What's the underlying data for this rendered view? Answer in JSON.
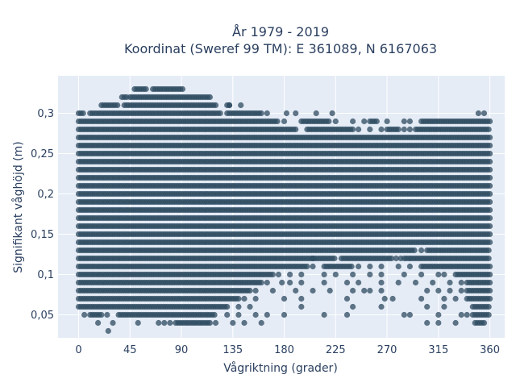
{
  "chart_data": {
    "type": "scatter",
    "title_lines": [
      "År 1979 - 2019",
      "Koordinat (Sweref 99 TM): E 361089, N 6167063"
    ],
    "xlabel": "Vågriktning (grader)",
    "ylabel": "Signifikant våghöjd (m)",
    "xlim": [
      -18,
      373
    ],
    "ylim": [
      0.0215,
      0.3465
    ],
    "xticks": [
      0,
      45,
      90,
      135,
      180,
      225,
      270,
      315,
      360
    ],
    "yticks": [
      0.05,
      0.1,
      0.15,
      0.2,
      0.25,
      0.3
    ],
    "ytick_labels": [
      "0,05",
      "0,1",
      "0,15",
      "0,2",
      "0,25",
      "0,3"
    ],
    "grid": true,
    "background": "#e5ecf6",
    "marker_color": "#2e4b60",
    "marker_opacity": 0.75,
    "y_levels": [
      0.03,
      0.04,
      0.05,
      0.06,
      0.07,
      0.08,
      0.09,
      0.1,
      0.11,
      0.12,
      0.13,
      0.14,
      0.15,
      0.16,
      0.17,
      0.18,
      0.19,
      0.2,
      0.21,
      0.22,
      0.23,
      0.24,
      0.25,
      0.26,
      0.27,
      0.28,
      0.29,
      0.3,
      0.31,
      0.32,
      0.33
    ],
    "dense_ranges": [
      {
        "y": 0.33,
        "x": [
          [
            49,
            60
          ],
          [
            65,
            92
          ]
        ]
      },
      {
        "y": 0.32,
        "x": [
          [
            38,
            42
          ],
          [
            45,
            115
          ]
        ]
      },
      {
        "y": 0.31,
        "x": [
          [
            20,
            35
          ],
          [
            40,
            120
          ],
          [
            130,
            133
          ]
        ]
      },
      {
        "y": 0.3,
        "x": [
          [
            0,
            5
          ],
          [
            10,
            125
          ],
          [
            130,
            160
          ]
        ]
      },
      {
        "y": 0.29,
        "x": [
          [
            0,
            175
          ],
          [
            195,
            220
          ],
          [
            255,
            262
          ],
          [
            300,
            360
          ]
        ]
      },
      {
        "y": 0.28,
        "x": [
          [
            0,
            190
          ],
          [
            200,
            240
          ],
          [
            270,
            280
          ],
          [
            295,
            360
          ]
        ]
      },
      {
        "y": 0.27,
        "x": [
          [
            0,
            360
          ]
        ]
      },
      {
        "y": 0.26,
        "x": [
          [
            0,
            360
          ]
        ]
      },
      {
        "y": 0.25,
        "x": [
          [
            0,
            360
          ]
        ]
      },
      {
        "y": 0.24,
        "x": [
          [
            0,
            360
          ]
        ]
      },
      {
        "y": 0.23,
        "x": [
          [
            0,
            360
          ]
        ]
      },
      {
        "y": 0.22,
        "x": [
          [
            0,
            360
          ]
        ]
      },
      {
        "y": 0.21,
        "x": [
          [
            0,
            360
          ]
        ]
      },
      {
        "y": 0.2,
        "x": [
          [
            0,
            360
          ]
        ]
      },
      {
        "y": 0.19,
        "x": [
          [
            0,
            360
          ]
        ]
      },
      {
        "y": 0.18,
        "x": [
          [
            0,
            360
          ]
        ]
      },
      {
        "y": 0.17,
        "x": [
          [
            0,
            360
          ]
        ]
      },
      {
        "y": 0.16,
        "x": [
          [
            0,
            360
          ]
        ]
      },
      {
        "y": 0.15,
        "x": [
          [
            0,
            360
          ]
        ]
      },
      {
        "y": 0.14,
        "x": [
          [
            0,
            360
          ]
        ]
      },
      {
        "y": 0.13,
        "x": [
          [
            0,
            295
          ],
          [
            305,
            360
          ]
        ]
      },
      {
        "y": 0.12,
        "x": [
          [
            0,
            225
          ],
          [
            230,
            275
          ],
          [
            285,
            360
          ]
        ]
      },
      {
        "y": 0.11,
        "x": [
          [
            0,
            200
          ],
          [
            215,
            240
          ],
          [
            300,
            360
          ]
        ]
      },
      {
        "y": 0.1,
        "x": [
          [
            0,
            170
          ],
          [
            330,
            360
          ]
        ]
      },
      {
        "y": 0.09,
        "x": [
          [
            0,
            160
          ],
          [
            340,
            360
          ]
        ]
      },
      {
        "y": 0.08,
        "x": [
          [
            0,
            150
          ],
          [
            340,
            360
          ]
        ]
      },
      {
        "y": 0.07,
        "x": [
          [
            0,
            140
          ],
          [
            340,
            360
          ]
        ]
      },
      {
        "y": 0.06,
        "x": [
          [
            0,
            130
          ],
          [
            345,
            360
          ]
        ]
      },
      {
        "y": 0.05,
        "x": [
          [
            10,
            20
          ],
          [
            35,
            120
          ],
          [
            345,
            360
          ]
        ]
      },
      {
        "y": 0.04,
        "x": [
          [
            85,
            115
          ],
          [
            347,
            355
          ]
        ]
      }
    ],
    "sparse_points": [
      [
        132,
        0.31
      ],
      [
        142,
        0.31
      ],
      [
        165,
        0.3
      ],
      [
        182,
        0.3
      ],
      [
        190,
        0.3
      ],
      [
        208,
        0.3
      ],
      [
        222,
        0.3
      ],
      [
        350,
        0.3
      ],
      [
        355,
        0.3
      ],
      [
        180,
        0.29
      ],
      [
        225,
        0.29
      ],
      [
        240,
        0.29
      ],
      [
        250,
        0.29
      ],
      [
        270,
        0.29
      ],
      [
        285,
        0.29
      ],
      [
        290,
        0.29
      ],
      [
        245,
        0.28
      ],
      [
        255,
        0.28
      ],
      [
        265,
        0.28
      ],
      [
        285,
        0.28
      ],
      [
        290,
        0.28
      ],
      [
        300,
        0.13
      ],
      [
        205,
        0.12
      ],
      [
        278,
        0.12
      ],
      [
        282,
        0.12
      ],
      [
        205,
        0.11
      ],
      [
        245,
        0.11
      ],
      [
        255,
        0.11
      ],
      [
        265,
        0.11
      ],
      [
        280,
        0.11
      ],
      [
        290,
        0.11
      ],
      [
        175,
        0.1
      ],
      [
        185,
        0.1
      ],
      [
        195,
        0.1
      ],
      [
        215,
        0.1
      ],
      [
        225,
        0.1
      ],
      [
        240,
        0.1
      ],
      [
        255,
        0.1
      ],
      [
        265,
        0.1
      ],
      [
        285,
        0.1
      ],
      [
        300,
        0.1
      ],
      [
        315,
        0.1
      ],
      [
        320,
        0.1
      ],
      [
        165,
        0.09
      ],
      [
        178,
        0.09
      ],
      [
        185,
        0.09
      ],
      [
        195,
        0.09
      ],
      [
        215,
        0.09
      ],
      [
        235,
        0.09
      ],
      [
        245,
        0.09
      ],
      [
        265,
        0.09
      ],
      [
        280,
        0.09
      ],
      [
        295,
        0.09
      ],
      [
        310,
        0.09
      ],
      [
        325,
        0.09
      ],
      [
        335,
        0.09
      ],
      [
        155,
        0.08
      ],
      [
        170,
        0.08
      ],
      [
        190,
        0.08
      ],
      [
        205,
        0.08
      ],
      [
        220,
        0.08
      ],
      [
        240,
        0.08
      ],
      [
        250,
        0.08
      ],
      [
        255,
        0.08
      ],
      [
        265,
        0.08
      ],
      [
        305,
        0.08
      ],
      [
        315,
        0.08
      ],
      [
        325,
        0.08
      ],
      [
        335,
        0.08
      ],
      [
        145,
        0.07
      ],
      [
        155,
        0.07
      ],
      [
        180,
        0.07
      ],
      [
        195,
        0.07
      ],
      [
        235,
        0.07
      ],
      [
        268,
        0.07
      ],
      [
        275,
        0.07
      ],
      [
        300,
        0.07
      ],
      [
        320,
        0.07
      ],
      [
        330,
        0.07
      ],
      [
        140,
        0.06
      ],
      [
        150,
        0.06
      ],
      [
        195,
        0.06
      ],
      [
        240,
        0.06
      ],
      [
        265,
        0.06
      ],
      [
        305,
        0.06
      ],
      [
        320,
        0.06
      ],
      [
        5,
        0.05
      ],
      [
        25,
        0.05
      ],
      [
        130,
        0.05
      ],
      [
        140,
        0.05
      ],
      [
        155,
        0.05
      ],
      [
        165,
        0.05
      ],
      [
        180,
        0.05
      ],
      [
        215,
        0.05
      ],
      [
        235,
        0.05
      ],
      [
        285,
        0.05
      ],
      [
        290,
        0.05
      ],
      [
        315,
        0.05
      ],
      [
        335,
        0.05
      ],
      [
        340,
        0.05
      ],
      [
        17,
        0.04
      ],
      [
        30,
        0.04
      ],
      [
        52,
        0.04
      ],
      [
        70,
        0.04
      ],
      [
        75,
        0.04
      ],
      [
        80,
        0.04
      ],
      [
        120,
        0.04
      ],
      [
        135,
        0.04
      ],
      [
        145,
        0.04
      ],
      [
        160,
        0.04
      ],
      [
        305,
        0.04
      ],
      [
        315,
        0.04
      ],
      [
        330,
        0.04
      ],
      [
        26,
        0.03
      ]
    ]
  }
}
